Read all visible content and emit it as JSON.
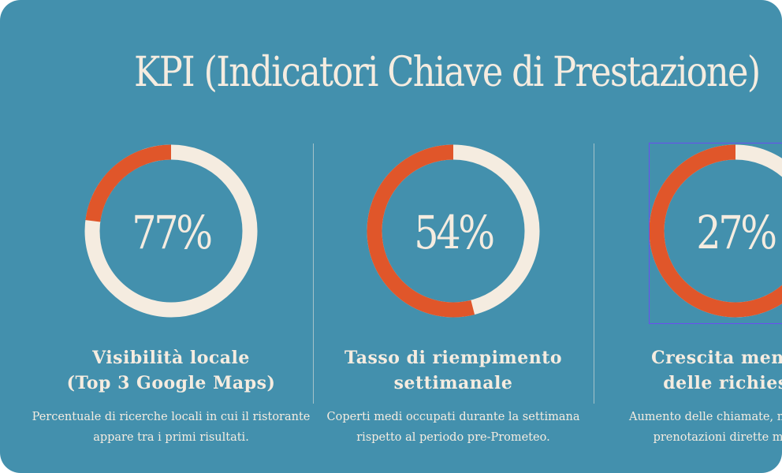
{
  "slide": {
    "title": "KPI (Indicatori Chiave di Prestazione)"
  },
  "colors": {
    "background": "#4390ad",
    "ring_track": "#f5ece0",
    "ring_fill": "#e0562a",
    "text": "#f5ece0",
    "selection_outline": "#6a4ef0"
  },
  "kpis": [
    {
      "percent_label": "77%",
      "progress_percent": 77,
      "ring_colored_segment_percent": 23,
      "title_line1": "Visibilità locale",
      "title_line2": "(Top 3 Google Maps)",
      "desc_line1": "Percentuale di ricerche locali in cui il ristorante",
      "desc_line2": "appare tra i primi risultati."
    },
    {
      "percent_label": "54%",
      "progress_percent": 54,
      "ring_colored_segment_percent": 54,
      "title_line1": "Tasso di riempimento",
      "title_line2": "settimanale",
      "desc_line1": "Coperti medi occupati durante la settimana",
      "desc_line2": "rispetto al periodo pre-Prometeo."
    },
    {
      "percent_label": "27%",
      "progress_percent": 27,
      "ring_colored_segment_percent": 73,
      "title_line1": "Crescita mensile",
      "title_line2": "delle richieste",
      "desc_line1": "Aumento delle chiamate, messaggi e",
      "desc_line2": "prenotazioni dirette mensili."
    }
  ]
}
